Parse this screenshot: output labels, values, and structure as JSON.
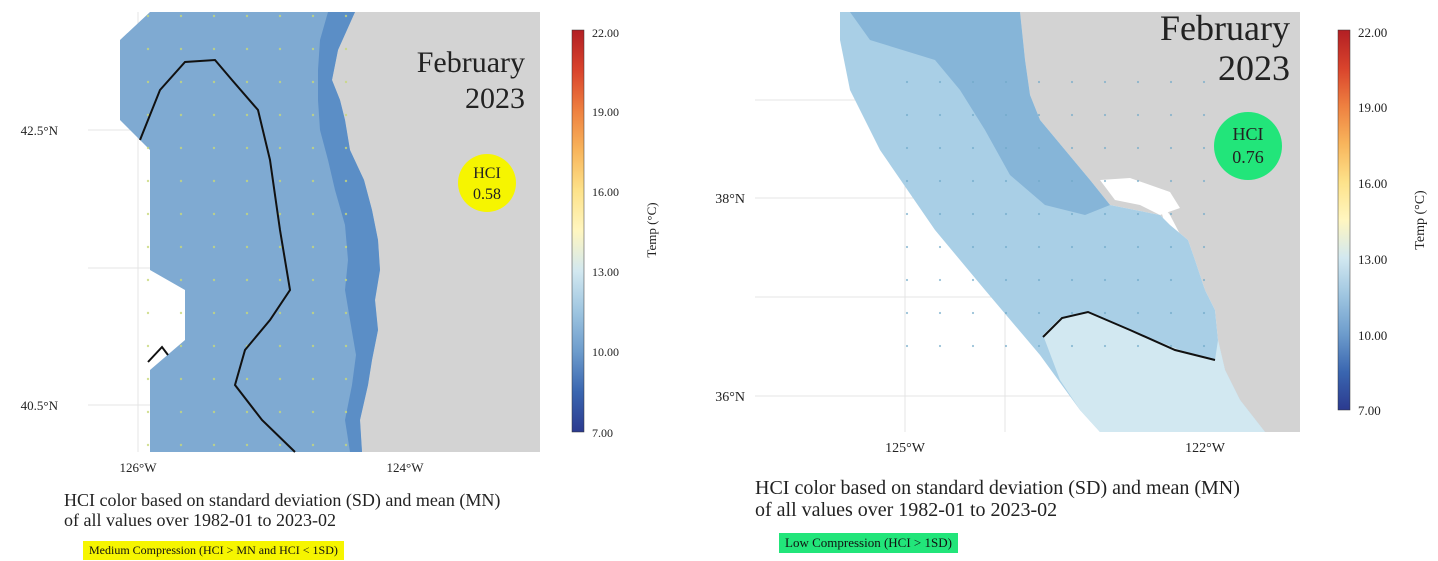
{
  "panels": [
    {
      "id": "north",
      "title_line1": "February",
      "title_line2": "2023",
      "hci_label": "HCI",
      "hci_value": "0.58",
      "hci_color": "#f6f500",
      "lat_labels": [
        "42.5°N",
        "40.5°N"
      ],
      "lon_labels": [
        "126°W",
        "124°W"
      ],
      "legend": {
        "title": "Temp (°C)",
        "ticks": [
          "22.00",
          "19.00",
          "16.00",
          "13.00",
          "10.00",
          "7.00"
        ]
      },
      "note_line1": "HCI color based on standard deviation (SD) and mean (MN)",
      "note_line2": "of all values over 1982-01 to 2023-02",
      "compression_label": "Medium Compression (HCI > MN and HCI < 1SD)",
      "compression_color": "#f6f500"
    },
    {
      "id": "south",
      "title_line1": "February",
      "title_line2": "2023",
      "hci_label": "HCI",
      "hci_value": "0.76",
      "hci_color": "#22e57a",
      "lat_labels": [
        "38°N",
        "36°N"
      ],
      "lon_labels": [
        "125°W",
        "122°W"
      ],
      "legend": {
        "title": "Temp (°C)",
        "ticks": [
          "22.00",
          "19.00",
          "16.00",
          "13.00",
          "10.00",
          "7.00"
        ]
      },
      "note_line1": "HCI color based on standard deviation (SD) and mean (MN)",
      "note_line2": "of all values over 1982-01 to 2023-02",
      "compression_label": "Low Compression (HCI > 1SD)",
      "compression_color": "#22e57a"
    }
  ]
}
